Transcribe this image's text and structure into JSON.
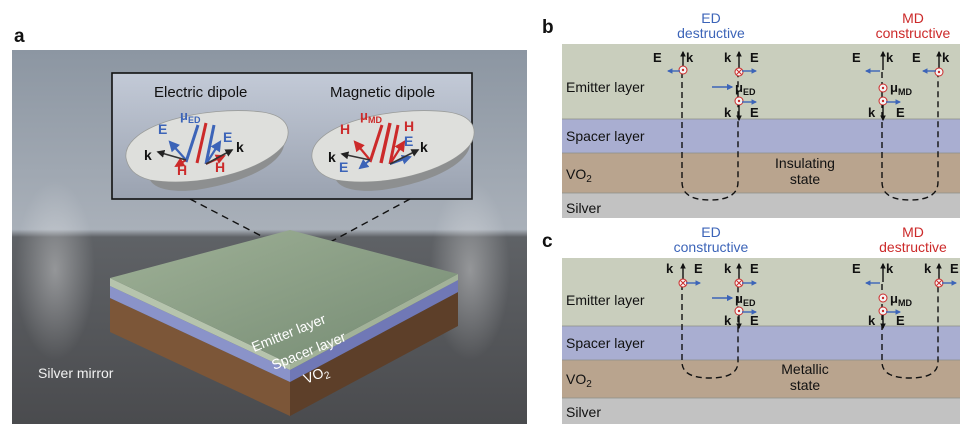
{
  "panel_a": {
    "letter": "a",
    "inset": {
      "electric_title": "Electric dipole",
      "magnetic_title": "Magnetic dipole",
      "e": "E",
      "h": "H",
      "k": "k",
      "mu": "μ",
      "ed_sub": "ED",
      "md_sub": "MD"
    },
    "slab": {
      "emitter": "Emitter layer",
      "spacer": "Spacer layer",
      "vo": "VO",
      "vo_sub": "2",
      "mirror": "Silver mirror"
    }
  },
  "panel_b": {
    "letter": "b",
    "ed_line1": "ED",
    "ed_line2": "destructive",
    "md_line1": "MD",
    "md_line2": "constructive",
    "state": [
      "Insulating",
      "state"
    ]
  },
  "panel_c": {
    "letter": "c",
    "ed_line1": "ED",
    "ed_line2": "constructive",
    "md_line1": "MD",
    "md_line2": "destructive",
    "state": [
      "Metallic",
      "state"
    ]
  },
  "layers": {
    "emitter": "Emitter layer",
    "spacer": "Spacer layer",
    "vo": "VO",
    "vo_sub": "2",
    "silver": "Silver"
  },
  "symbols": {
    "e": "E",
    "k": "k",
    "mu": "μ",
    "ed": "ED",
    "md": "MD"
  },
  "colors": {
    "emitter": "#c9cebd",
    "spacer": "#a9aed1",
    "vo2": "#b9a48e",
    "silver": "#c2c2c2",
    "blue": "#3c64b8",
    "red": "#cc2a2a"
  }
}
